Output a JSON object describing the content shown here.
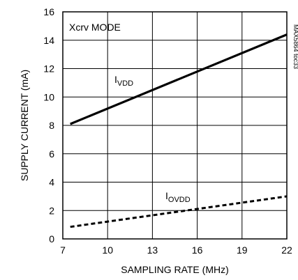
{
  "chart_data": {
    "type": "line",
    "title": "",
    "xlabel": "SAMPLING RATE (MHz)",
    "ylabel": "SUPPLY CURRENT (mA)",
    "xlim": [
      7,
      22
    ],
    "ylim": [
      0,
      16
    ],
    "xticks": [
      7,
      10,
      13,
      16,
      19,
      22
    ],
    "yticks": [
      0,
      2,
      4,
      6,
      8,
      10,
      12,
      14,
      16
    ],
    "grid": true,
    "mode_label": "Xcrv MODE",
    "side_note": "MAX5864 toc33",
    "series": [
      {
        "name_main": "I",
        "name_sub": "VDD",
        "style": "solid",
        "color": "#000000",
        "x": [
          7.5,
          22
        ],
        "y": [
          8.1,
          14.4
        ]
      },
      {
        "name_main": "I",
        "name_sub": "OVDD",
        "style": "dashed",
        "color": "#000000",
        "x": [
          7.5,
          22
        ],
        "y": [
          0.85,
          3.0
        ]
      }
    ]
  }
}
